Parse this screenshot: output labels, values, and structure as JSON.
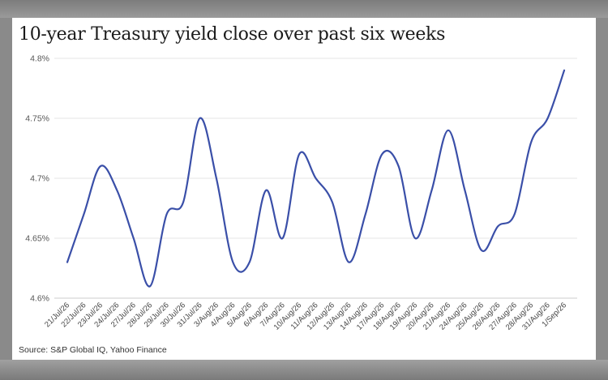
{
  "chart_data": {
    "type": "line",
    "title": "10-year Treasury yield close over past six weeks",
    "source": "Source: S&P Global IQ, Yahoo Finance",
    "xlabel": "",
    "ylabel": "",
    "ylim": [
      4.6,
      4.8
    ],
    "yticks": [
      "4.6%",
      "4.65%",
      "4.7%",
      "4.75%",
      "4.8%"
    ],
    "grid": true,
    "legend": "none",
    "line_color": "#3a4fa8",
    "categories": [
      "21/Jul/26",
      "22/Jul/26",
      "23/Jul/26",
      "24/Jul/26",
      "27/Jul/26",
      "28/Jul/26",
      "29/Jul/26",
      "30/Jul/26",
      "31/Jul/26",
      "3/Aug/26",
      "4/Aug/26",
      "5/Aug/26",
      "6/Aug/26",
      "7/Aug/26",
      "10/Aug/26",
      "11/Aug/26",
      "12/Aug/26",
      "13/Aug/26",
      "14/Aug/26",
      "17/Aug/26",
      "18/Aug/26",
      "19/Aug/26",
      "20/Aug/26",
      "21/Aug/26",
      "24/Aug/26",
      "25/Aug/26",
      "26/Aug/26",
      "27/Aug/26",
      "28/Aug/26",
      "31/Aug/26",
      "1/Sep/26"
    ],
    "values": [
      4.63,
      4.67,
      4.71,
      4.69,
      4.65,
      4.61,
      4.67,
      4.68,
      4.75,
      4.7,
      4.63,
      4.63,
      4.69,
      4.65,
      4.72,
      4.7,
      4.68,
      4.63,
      4.67,
      4.72,
      4.71,
      4.65,
      4.69,
      4.74,
      4.69,
      4.64,
      4.66,
      4.67,
      4.73,
      4.75,
      4.79
    ]
  }
}
